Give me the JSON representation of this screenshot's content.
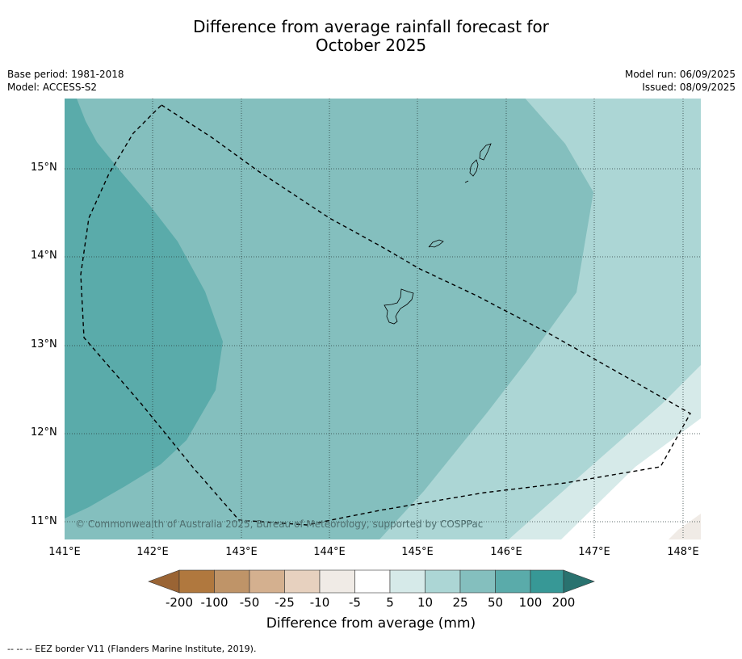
{
  "title_line1": "Difference from average rainfall forecast for",
  "title_line2": "October 2025",
  "meta_left": {
    "base_period": "Base period: 1981-2018",
    "model": "Model: ACCESS-S2"
  },
  "meta_right": {
    "model_run": "Model run: 06/09/2025",
    "issued": "Issued: 08/09/2025"
  },
  "map": {
    "lat_labels": [
      "15°N",
      "14°N",
      "13°N",
      "12°N",
      "11°N"
    ],
    "lon_labels": [
      "141°E",
      "142°E",
      "143°E",
      "144°E",
      "145°E",
      "146°E",
      "147°E",
      "148°E"
    ],
    "copyright": "© Commonwealth of Australia 2025, Bureau of Meteorology, supported by COSPPac"
  },
  "colorbar": {
    "title": "Difference from average (mm)",
    "tick_labels": [
      "-200",
      "-100",
      "-50",
      "-25",
      "-10",
      "-5",
      "5",
      "10",
      "25",
      "50",
      "100",
      "200"
    ],
    "colors": [
      "#9a6434",
      "#b0783e",
      "#bf9468",
      "#d4b08f",
      "#e7d1bf",
      "#f0ebe6",
      "#ffffff",
      "#d6eae9",
      "#acd6d5",
      "#84bfbe",
      "#5aabaa",
      "#379896",
      "#29726f"
    ]
  },
  "footnote": "--  --  -- EEZ border V11 (Flanders Marine Institute, 2019)."
}
